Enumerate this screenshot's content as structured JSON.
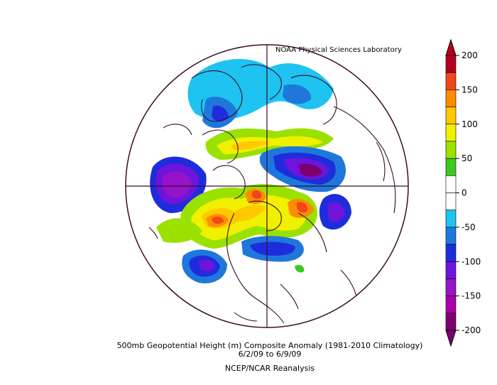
{
  "credit": "NOAA Physical Sciences Laboratory",
  "caption": {
    "line1": "500mb Geopotential Height (m) Composite Anomaly (1981-2010 Climatology)",
    "line2": "6/2/09   to 6/9/09",
    "line3": "NCEP/NCAR Reanalysis"
  },
  "colorbar": {
    "ticks": [
      "200",
      "150",
      "100",
      "50",
      "0",
      "-50",
      "-100",
      "-150",
      "-200"
    ],
    "colors": [
      "#b4001e",
      "#f0461e",
      "#ff8c00",
      "#ffc800",
      "#f0f000",
      "#9be100",
      "#3cc81e",
      "#ffffff",
      "#ffffff",
      "#1ec3f0",
      "#1e78dc",
      "#1e2ddc",
      "#6e14dc",
      "#9614c8",
      "#aa00aa",
      "#7d006e"
    ]
  },
  "map": {
    "projection": "polar stereographic (Northern Hemisphere)",
    "field": "500mb geopotential height anomaly"
  }
}
